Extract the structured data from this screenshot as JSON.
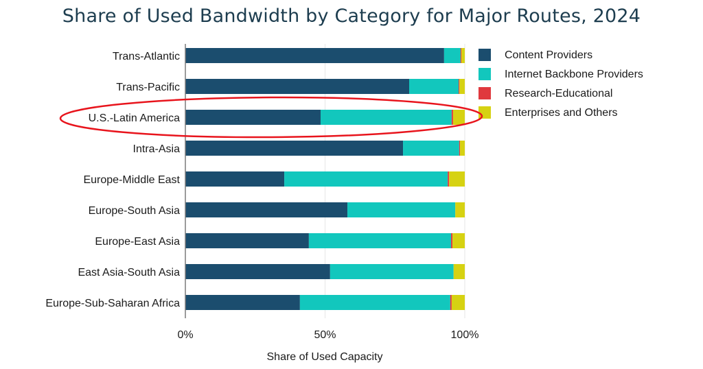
{
  "chart_data": {
    "type": "bar",
    "orientation": "horizontal",
    "stacked": true,
    "title": "Share of Used Bandwidth by Category for Major Routes, 2024",
    "xlabel": "Share of Used Capacity",
    "ylabel": "",
    "xlim": [
      0,
      100
    ],
    "x_ticks": [
      "0%",
      "50%",
      "100%"
    ],
    "x_tick_values": [
      0,
      50,
      100
    ],
    "grid": true,
    "legend_position": "top-right",
    "categories": [
      "Trans-Atlantic",
      "Trans-Pacific",
      "U.S.-Latin America",
      "Intra-Asia",
      "Europe-Middle East",
      "Europe-South Asia",
      "Europe-East Asia",
      "East Asia-South Asia",
      "Europe-Sub-Saharan Africa"
    ],
    "series": [
      {
        "name": "Content Providers",
        "color": "#1b4d6e",
        "values": [
          92.6,
          80.1,
          48.4,
          77.9,
          35.4,
          58.0,
          44.2,
          51.8,
          41.0
        ]
      },
      {
        "name": "Internet Backbone Providers",
        "color": "#12c7bd",
        "values": [
          5.9,
          17.7,
          46.9,
          20.1,
          58.5,
          38.6,
          50.9,
          44.2,
          53.8
        ]
      },
      {
        "name": "Research-Educational",
        "color": "#e0393e",
        "values": [
          0.3,
          0.3,
          0.5,
          0.3,
          0.5,
          0.0,
          0.5,
          0.0,
          0.5
        ]
      },
      {
        "name": "Enterprises and Others",
        "color": "#d6d212",
        "values": [
          1.2,
          1.9,
          4.2,
          1.7,
          5.6,
          3.4,
          4.4,
          4.0,
          4.7
        ]
      }
    ],
    "annotations": [
      {
        "type": "ellipse-highlight",
        "target": "U.S.-Latin America",
        "color": "#e8141c"
      }
    ]
  }
}
